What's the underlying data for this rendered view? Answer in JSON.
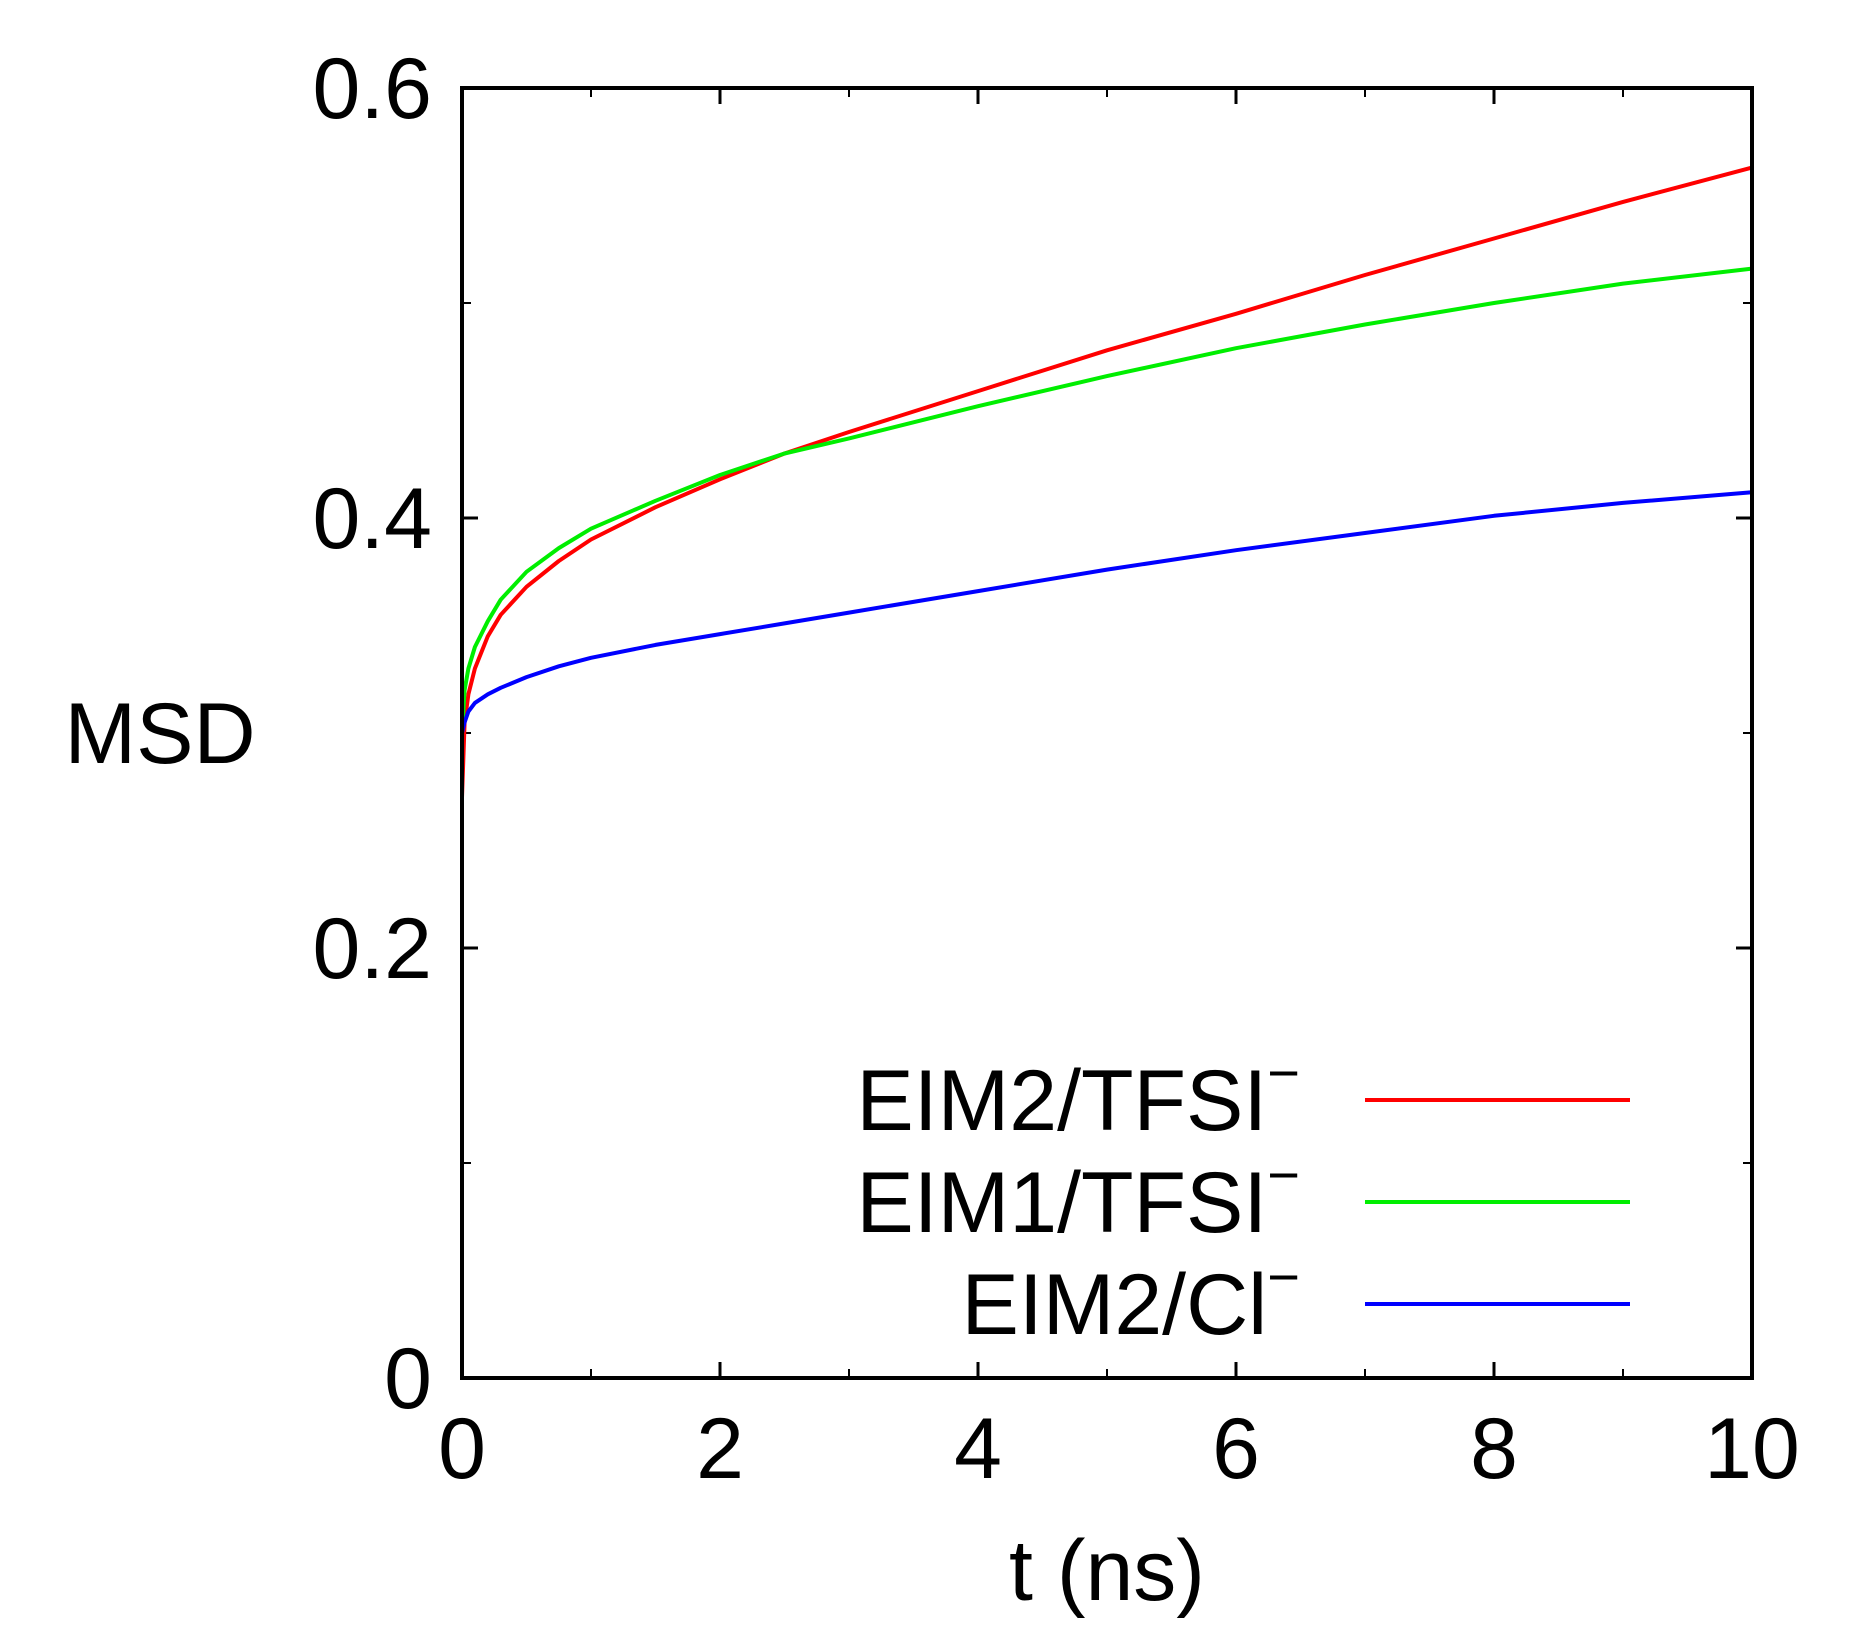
{
  "chart_data": {
    "type": "line",
    "xlabel": "t (ns)",
    "ylabel": "MSD",
    "xlim": [
      0,
      10
    ],
    "ylim": [
      0,
      0.6
    ],
    "x_ticks": [
      {
        "value": 0,
        "label": "0"
      },
      {
        "value": 2,
        "label": "2"
      },
      {
        "value": 4,
        "label": "4"
      },
      {
        "value": 6,
        "label": "6"
      },
      {
        "value": 8,
        "label": "8"
      },
      {
        "value": 10,
        "label": "10"
      }
    ],
    "x_minor_ticks": [
      1,
      3,
      5,
      7,
      9
    ],
    "y_ticks": [
      {
        "value": 0,
        "label": "0"
      },
      {
        "value": 0.2,
        "label": "0.2"
      },
      {
        "value": 0.4,
        "label": "0.4"
      },
      {
        "value": 0.6,
        "label": "0.6"
      }
    ],
    "y_minor_ticks": [
      0.1,
      0.3,
      0.5
    ],
    "grid": false,
    "legend_position": "bottom-right",
    "series": [
      {
        "name": "EIM2/TFSI",
        "name_superscript": "−",
        "color": "#ff0000",
        "x": [
          0,
          0.02,
          0.05,
          0.1,
          0.2,
          0.3,
          0.5,
          0.75,
          1.0,
          1.5,
          2.0,
          2.5,
          3.0,
          4.0,
          5.0,
          6.0,
          7.0,
          8.0,
          9.0,
          10.0
        ],
        "y": [
          0.27,
          0.305,
          0.318,
          0.33,
          0.345,
          0.355,
          0.368,
          0.38,
          0.39,
          0.405,
          0.418,
          0.43,
          0.44,
          0.459,
          0.478,
          0.495,
          0.513,
          0.53,
          0.547,
          0.563
        ]
      },
      {
        "name": "EIM1/TFSI",
        "name_superscript": "−",
        "color": "#00ee00",
        "x": [
          0,
          0.02,
          0.05,
          0.1,
          0.2,
          0.3,
          0.5,
          0.75,
          1.0,
          1.5,
          2.0,
          2.5,
          3.0,
          4.0,
          5.0,
          6.0,
          7.0,
          8.0,
          9.0,
          10.0
        ],
        "y": [
          0.3,
          0.32,
          0.33,
          0.34,
          0.352,
          0.362,
          0.375,
          0.386,
          0.395,
          0.408,
          0.42,
          0.43,
          0.437,
          0.452,
          0.466,
          0.479,
          0.49,
          0.5,
          0.509,
          0.516
        ]
      },
      {
        "name": "EIM2/Cl",
        "name_superscript": "−",
        "color": "#0000ff",
        "x": [
          0,
          0.02,
          0.05,
          0.1,
          0.2,
          0.3,
          0.5,
          0.75,
          1.0,
          1.5,
          2.0,
          2.5,
          3.0,
          4.0,
          5.0,
          6.0,
          7.0,
          8.0,
          9.0,
          10.0
        ],
        "y": [
          0.3,
          0.305,
          0.31,
          0.314,
          0.318,
          0.321,
          0.326,
          0.331,
          0.335,
          0.341,
          0.346,
          0.351,
          0.356,
          0.366,
          0.376,
          0.385,
          0.393,
          0.401,
          0.407,
          0.412
        ]
      }
    ]
  }
}
